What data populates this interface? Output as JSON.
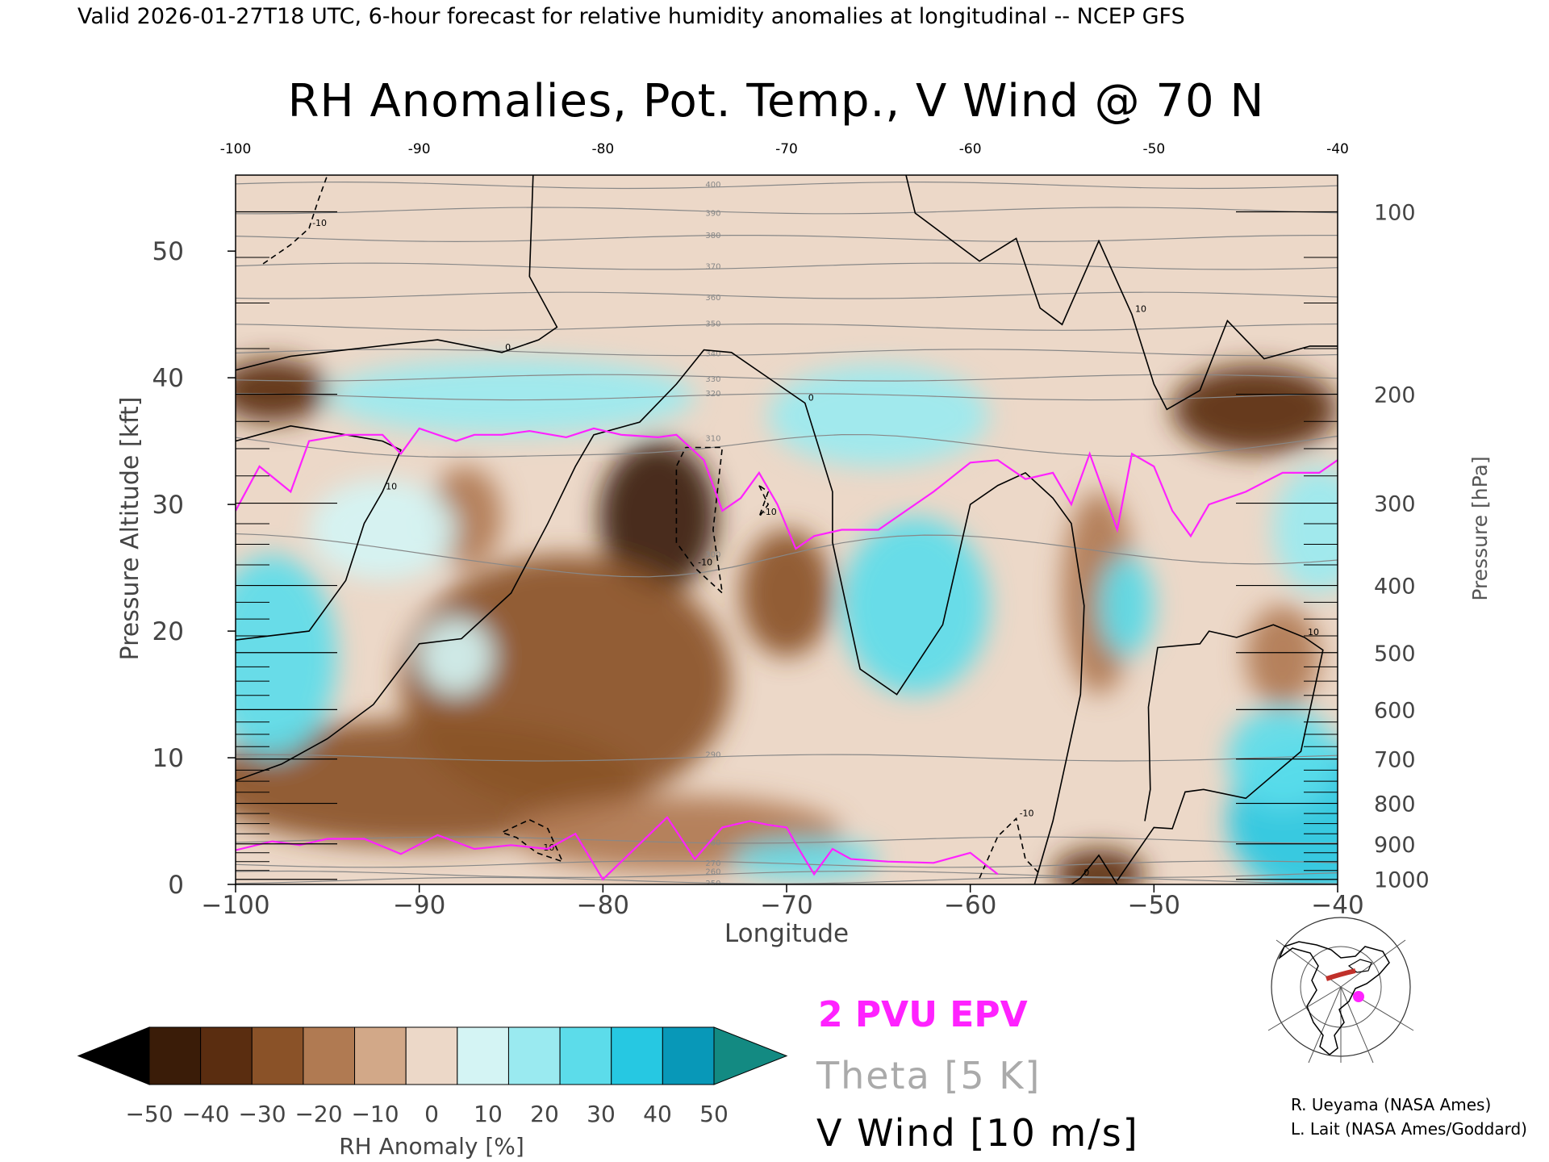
{
  "header": {
    "valid_line": "Valid 2026-01-27T18 UTC, 6-hour forecast for relative humidity anomalies at longitudinal -- NCEP GFS"
  },
  "chart_data": {
    "type": "heatmap",
    "title": "RH Anomalies, Pot. Temp., V Wind @ 70 N",
    "xlabel": "Longitude",
    "ylabel": "Pressure Altitude [kft]",
    "y2label": "Pressure [hPa]",
    "xlim": [
      -100,
      -40
    ],
    "ylim": [
      0,
      56
    ],
    "x_ticks": [
      -100,
      -90,
      -80,
      -70,
      -60,
      -50,
      -40
    ],
    "x_tick_labels": [
      "−100",
      "−90",
      "−80",
      "−70",
      "−60",
      "−50",
      "−40"
    ],
    "top_ticks": [
      -100,
      -90,
      -80,
      -70,
      -60,
      -50,
      -40
    ],
    "top_tick_labels": [
      "-100",
      "-90",
      "-80",
      "-70",
      "-60",
      "-50",
      "-40"
    ],
    "y_ticks": [
      0,
      10,
      20,
      30,
      40,
      50
    ],
    "y_tick_labels": [
      "0",
      "10",
      "20",
      "30",
      "40",
      "50"
    ],
    "pressure_ticks": [
      {
        "hpa": 100,
        "label": "100",
        "kft": 53.1
      },
      {
        "hpa": 200,
        "label": "200",
        "kft": 38.7
      },
      {
        "hpa": 300,
        "label": "300",
        "kft": 30.1
      },
      {
        "hpa": 400,
        "label": "400",
        "kft": 23.6
      },
      {
        "hpa": 500,
        "label": "500",
        "kft": 18.3
      },
      {
        "hpa": 600,
        "label": "600",
        "kft": 13.8
      },
      {
        "hpa": 700,
        "label": "700",
        "kft": 9.9
      },
      {
        "hpa": 800,
        "label": "800",
        "kft": 6.4
      },
      {
        "hpa": 900,
        "label": "900",
        "kft": 3.2
      },
      {
        "hpa": 1000,
        "label": "1000",
        "kft": 0.4
      }
    ],
    "colorbar": {
      "label": "RH Anomaly [%]",
      "levels": [
        -50,
        -40,
        -30,
        -20,
        -10,
        0,
        10,
        20,
        30,
        40,
        50
      ],
      "level_labels": [
        "−50",
        "−40",
        "−30",
        "−20",
        "−10",
        "0",
        "10",
        "20",
        "30",
        "40",
        "50"
      ],
      "colors": [
        "#3a1c08",
        "#5a2d10",
        "#8a5228",
        "#b07a52",
        "#d2a888",
        "#ecd8c8",
        "#d4f4f4",
        "#9aeaf0",
        "#5cdcea",
        "#26c8e2",
        "#0898b8"
      ],
      "under_color": "#000000",
      "over_color": "#138a82"
    },
    "blobs": [
      {
        "lon": -77,
        "kft": 29,
        "rh": -48,
        "rlon": 3.2,
        "rk": 6
      },
      {
        "lon": -82,
        "kft": 16,
        "rh": -28,
        "rlon": 9,
        "rk": 10
      },
      {
        "lon": -90,
        "kft": 8,
        "rh": -24,
        "rlon": 12,
        "rk": 5
      },
      {
        "lon": -76,
        "kft": 4,
        "rh": -20,
        "rlon": 9,
        "rk": 3
      },
      {
        "lon": -98,
        "kft": 39,
        "rh": -34,
        "rlon": 3,
        "rk": 2.5
      },
      {
        "lon": -44.5,
        "kft": 37.5,
        "rh": -38,
        "rlon": 4.5,
        "rk": 3.5
      },
      {
        "lon": -43,
        "kft": 18,
        "rh": -20,
        "rlon": 2,
        "rk": 4
      },
      {
        "lon": -53,
        "kft": 23,
        "rh": -14,
        "rlon": 2,
        "rk": 8
      },
      {
        "lon": -70,
        "kft": 23,
        "rh": -22,
        "rlon": 2.5,
        "rk": 5
      },
      {
        "lon": -87.5,
        "kft": 29,
        "rh": -20,
        "rlon": 2,
        "rk": 4
      },
      {
        "lon": -53,
        "kft": 0.8,
        "rh": -36,
        "rlon": 2.5,
        "rk": 2
      },
      {
        "lon": -98,
        "kft": 18,
        "rh": 30,
        "rlon": 3.5,
        "rk": 8
      },
      {
        "lon": -63,
        "kft": 22,
        "rh": 38,
        "rlon": 4,
        "rk": 7
      },
      {
        "lon": -85,
        "kft": 38.5,
        "rh": 28,
        "rlon": 10,
        "rk": 3
      },
      {
        "lon": -65,
        "kft": 37,
        "rh": 20,
        "rlon": 6,
        "rk": 4
      },
      {
        "lon": -41,
        "kft": 5,
        "rh": 46,
        "rlon": 5,
        "rk": 6
      },
      {
        "lon": -43,
        "kft": 10,
        "rh": 30,
        "rlon": 3,
        "rk": 4
      },
      {
        "lon": -51.5,
        "kft": 22,
        "rh": 32,
        "rlon": 1.5,
        "rk": 4
      },
      {
        "lon": -69,
        "kft": 2,
        "rh": 32,
        "rlon": 4,
        "rk": 1.5
      },
      {
        "lon": -88,
        "kft": 18,
        "rh": 14,
        "rlon": 2,
        "rk": 3
      },
      {
        "lon": -41,
        "kft": 28,
        "rh": 24,
        "rlon": 2.5,
        "rk": 5
      },
      {
        "lon": -92,
        "kft": 28,
        "rh": 10,
        "rlon": 4,
        "rk": 4
      }
    ],
    "theta_levels": [
      {
        "value": 250,
        "label": "250",
        "kft": 0.3
      },
      {
        "value": 260,
        "label": "260",
        "kft": 0.8
      },
      {
        "value": 270,
        "label": "270",
        "kft": 1.6
      },
      {
        "value": 280,
        "label": "280",
        "kft": 3.5
      },
      {
        "value": 290,
        "label": "290",
        "kft": 10
      },
      {
        "value": 300,
        "label": "300",
        "kft": 26.5
      },
      {
        "value": 310,
        "label": "310",
        "kft": 35
      },
      {
        "value": 320,
        "label": "320",
        "kft": 38.5
      },
      {
        "value": 330,
        "label": "330",
        "kft": 40
      },
      {
        "value": 340,
        "label": "340",
        "kft": 42
      },
      {
        "value": 350,
        "label": "350",
        "kft": 44
      },
      {
        "value": 360,
        "label": "360",
        "kft": 46.5
      },
      {
        "value": 370,
        "label": "370",
        "kft": 48.8
      },
      {
        "value": 380,
        "label": "380",
        "kft": 51
      },
      {
        "value": 390,
        "label": "390",
        "kft": 53.2
      },
      {
        "value": 400,
        "label": "400",
        "kft": 55.2
      }
    ],
    "pv_2pvu_line": {
      "name": "2 PVU EPV",
      "color": "#ff22ff",
      "upper": [
        [
          -100,
          29.5
        ],
        [
          -98.7,
          33
        ],
        [
          -97,
          31
        ],
        [
          -96,
          35
        ],
        [
          -94,
          35.5
        ],
        [
          -92,
          35.5
        ],
        [
          -91,
          34
        ],
        [
          -90,
          36
        ],
        [
          -88,
          35
        ],
        [
          -87,
          35.5
        ],
        [
          -85.5,
          35.5
        ],
        [
          -84,
          35.8
        ],
        [
          -82,
          35.3
        ],
        [
          -80.5,
          36
        ],
        [
          -79,
          35.5
        ],
        [
          -77,
          35.3
        ],
        [
          -76,
          35.5
        ],
        [
          -74.5,
          33.5
        ],
        [
          -73.5,
          29.5
        ],
        [
          -72.5,
          30.5
        ],
        [
          -71.5,
          32.5
        ],
        [
          -70.5,
          30
        ],
        [
          -69.5,
          26.5
        ],
        [
          -68.5,
          27.5
        ],
        [
          -67,
          28
        ],
        [
          -65,
          28
        ],
        [
          -62,
          31
        ],
        [
          -60,
          33.3
        ],
        [
          -58.5,
          33.5
        ],
        [
          -57,
          32
        ],
        [
          -55.5,
          32.5
        ],
        [
          -54.5,
          30
        ],
        [
          -53.5,
          34
        ],
        [
          -52,
          28
        ],
        [
          -51.2,
          34
        ],
        [
          -50,
          33
        ],
        [
          -49,
          29.5
        ],
        [
          -48,
          27.5
        ],
        [
          -47,
          30
        ],
        [
          -45,
          31
        ],
        [
          -43,
          32.5
        ],
        [
          -41,
          32.5
        ],
        [
          -40,
          33.5
        ]
      ],
      "lower": [
        [
          -100,
          2.7
        ],
        [
          -98,
          3.4
        ],
        [
          -96.5,
          3.1
        ],
        [
          -95,
          3.6
        ],
        [
          -93,
          3.6
        ],
        [
          -91,
          2.4
        ],
        [
          -89,
          3.9
        ],
        [
          -87,
          2.8
        ],
        [
          -85,
          3.1
        ],
        [
          -83,
          2.8
        ],
        [
          -81.5,
          4
        ],
        [
          -80,
          0.4
        ],
        [
          -78.5,
          2.5
        ],
        [
          -76.5,
          5.3
        ],
        [
          -75,
          2
        ],
        [
          -73.5,
          4.5
        ],
        [
          -72,
          5
        ],
        [
          -71,
          4.7
        ],
        [
          -70,
          4.5
        ],
        [
          -69.5,
          3.2
        ],
        [
          -68.5,
          0.8
        ],
        [
          -67.5,
          2.8
        ],
        [
          -66.5,
          2
        ],
        [
          -64.5,
          1.8
        ],
        [
          -62,
          1.7
        ],
        [
          -60,
          2.5
        ],
        [
          -58.5,
          0.8
        ]
      ]
    },
    "theta_series": {
      "name": "Theta [5 K]",
      "color": "#888888"
    },
    "vwind_series": {
      "name": "V Wind [10 m/s]",
      "color": "#000000"
    },
    "zero_wind_lines": [
      {
        "label": "0",
        "pts": [
          [
            -100,
            40.6
          ],
          [
            -97,
            41.7
          ],
          [
            -94,
            42.2
          ],
          [
            -91,
            42.7
          ],
          [
            -89,
            43
          ],
          [
            -85.5,
            42
          ],
          [
            -83.5,
            43
          ],
          [
            -82.5,
            44
          ],
          [
            -84,
            48
          ],
          [
            -83.8,
            56
          ]
        ]
      },
      {
        "label": "0",
        "pts": [
          [
            -100,
            8.2
          ],
          [
            -97.5,
            9.5
          ],
          [
            -95,
            11.5
          ],
          [
            -92.5,
            14.2
          ],
          [
            -90,
            19
          ],
          [
            -87.7,
            19.4
          ],
          [
            -85,
            23
          ],
          [
            -83,
            28.5
          ],
          [
            -81.5,
            33
          ],
          [
            -80.5,
            35.5
          ],
          [
            -78,
            36.5
          ],
          [
            -76,
            39.5
          ],
          [
            -74.5,
            42.2
          ],
          [
            -73,
            42
          ],
          [
            -71,
            40
          ],
          [
            -69,
            38
          ],
          [
            -67.5,
            31
          ],
          [
            -67.5,
            27
          ],
          [
            -66,
            17
          ],
          [
            -64,
            15
          ],
          [
            -61.5,
            20.5
          ],
          [
            -60,
            30
          ],
          [
            -58.5,
            31.5
          ],
          [
            -57,
            32.5
          ],
          [
            -55.5,
            30.5
          ],
          [
            -54.5,
            28.5
          ],
          [
            -53.8,
            22
          ],
          [
            -54,
            15
          ],
          [
            -55.5,
            5
          ],
          [
            -56.5,
            0
          ]
        ]
      },
      {
        "label": "0",
        "pts": [
          [
            -52,
            0
          ],
          [
            -53,
            2.3
          ],
          [
            -54,
            0.5
          ],
          [
            -54.5,
            0
          ]
        ]
      }
    ],
    "ten_wind_lines": [
      {
        "label": "10",
        "pts": [
          [
            -100,
            35
          ],
          [
            -97,
            36.2
          ],
          [
            -94,
            35.5
          ],
          [
            -92,
            35
          ],
          [
            -91,
            34.3
          ],
          [
            -92,
            31
          ],
          [
            -93,
            28.5
          ],
          [
            -94,
            24
          ],
          [
            -96,
            20
          ],
          [
            -100,
            19.3
          ]
        ]
      },
      {
        "label": "10",
        "pts": [
          [
            -63.5,
            56
          ],
          [
            -63,
            53
          ],
          [
            -59.5,
            49.2
          ],
          [
            -57.5,
            51
          ],
          [
            -56.2,
            45.5
          ],
          [
            -55,
            44.2
          ],
          [
            -53,
            50.8
          ],
          [
            -51.2,
            45
          ],
          [
            -50,
            39.5
          ],
          [
            -49.3,
            37.5
          ],
          [
            -47.5,
            39
          ],
          [
            -46,
            44.5
          ],
          [
            -44,
            41.5
          ],
          [
            -41.5,
            42.5
          ],
          [
            -40,
            42.5
          ]
        ]
      },
      {
        "label": "10",
        "pts": [
          [
            -52,
            0.3
          ],
          [
            -50,
            4.5
          ],
          [
            -49,
            4.4
          ],
          [
            -48.3,
            7.3
          ],
          [
            -47.3,
            7.5
          ],
          [
            -45,
            6.8
          ],
          [
            -42,
            10.5
          ],
          [
            -40.8,
            18.5
          ],
          [
            -41.8,
            19.5
          ],
          [
            -43.5,
            20.5
          ],
          [
            -45.5,
            19.5
          ],
          [
            -47,
            20
          ],
          [
            -47.5,
            19
          ],
          [
            -49.8,
            18.7
          ],
          [
            -50.3,
            14
          ],
          [
            -50.2,
            7.5
          ],
          [
            -50.5,
            5
          ]
        ]
      }
    ],
    "neg_wind_lines": [
      {
        "label": "-10",
        "pts": [
          [
            -75.5,
            34.5
          ],
          [
            -73.5,
            34.5
          ],
          [
            -74,
            28
          ],
          [
            -73.5,
            23
          ],
          [
            -75,
            25
          ],
          [
            -76,
            27
          ],
          [
            -76,
            33
          ],
          [
            -75.5,
            34.5
          ]
        ]
      },
      {
        "label": "-10",
        "pts": [
          [
            -98.5,
            49
          ],
          [
            -97,
            50.5
          ],
          [
            -96,
            51.8
          ],
          [
            -95.5,
            54
          ],
          [
            -95,
            56
          ]
        ]
      },
      {
        "label": "-10",
        "pts": [
          [
            -84,
            5.1
          ],
          [
            -83,
            4.4
          ],
          [
            -82.2,
            1.8
          ],
          [
            -83.6,
            2.5
          ],
          [
            -84.7,
            3.7
          ],
          [
            -85.5,
            4.1
          ],
          [
            -84,
            5.1
          ]
        ]
      },
      {
        "label": "-10",
        "pts": [
          [
            -71.5,
            31.5
          ],
          [
            -71,
            30
          ],
          [
            -71.5,
            29
          ],
          [
            -71,
            31
          ],
          [
            -71.5,
            31.5
          ]
        ]
      },
      {
        "label": "-10",
        "pts": [
          [
            -59.5,
            0.5
          ],
          [
            -58.5,
            3.8
          ],
          [
            -57.5,
            5.2
          ],
          [
            -57,
            2
          ],
          [
            -56.2,
            0.8
          ]
        ]
      }
    ],
    "map_inset": {
      "credits": [
        "R. Ueyama (NASA Ames)",
        "L. Lait (NASA Ames/Goddard)"
      ]
    }
  }
}
